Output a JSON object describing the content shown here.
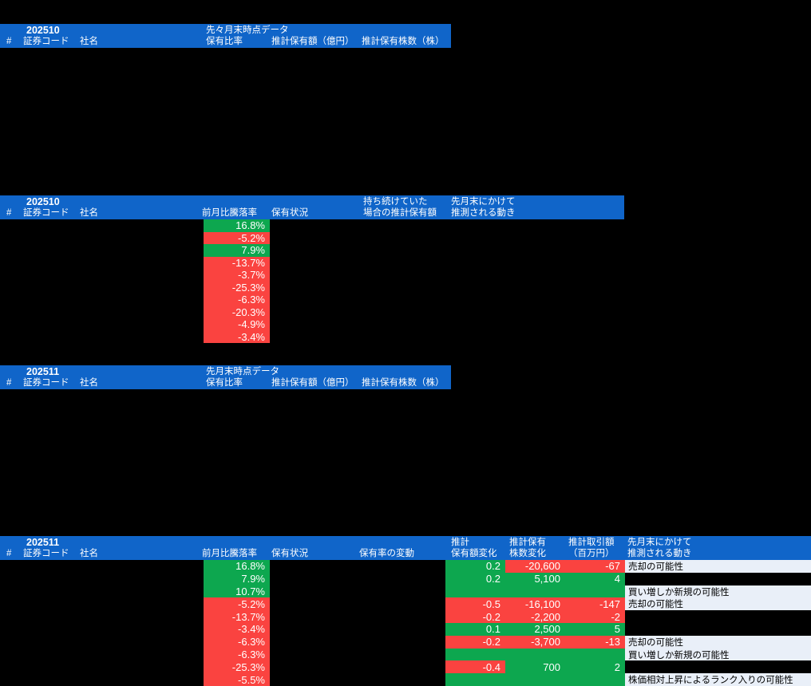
{
  "colors": {
    "header_blue": "#1065c9",
    "positive_green": "#0da74f",
    "negative_red": "#fa4340",
    "note_light": "#e9eff8"
  },
  "s1": {
    "month": "202510",
    "group": "先々月末時点データ",
    "cols": {
      "hash": "#",
      "code": "証券コード",
      "name": "社名",
      "ratio": "保有比率",
      "amount": "推計保有額（億円）",
      "shares": "推計保有株数（株）"
    }
  },
  "s2": {
    "month": "202510",
    "cols": {
      "hash": "#",
      "code": "証券コード",
      "name": "社名",
      "pct": "前月比騰落率",
      "status": "保有状況",
      "hold1": "持ち続けていた",
      "hold2": "場合の推計保有額",
      "move1": "先月末にかけて",
      "move2": "推測される動き"
    },
    "rows": [
      {
        "pct": "16.8%",
        "pct_bg": "green"
      },
      {
        "pct": "-5.2%",
        "pct_bg": "red"
      },
      {
        "pct": "7.9%",
        "pct_bg": "green"
      },
      {
        "pct": "-13.7%",
        "pct_bg": "red"
      },
      {
        "pct": "-3.7%",
        "pct_bg": "red"
      },
      {
        "pct": "-25.3%",
        "pct_bg": "red"
      },
      {
        "pct": "-6.3%",
        "pct_bg": "red"
      },
      {
        "pct": "-20.3%",
        "pct_bg": "red"
      },
      {
        "pct": "-4.9%",
        "pct_bg": "red"
      },
      {
        "pct": "-3.4%",
        "pct_bg": "red"
      }
    ]
  },
  "s3": {
    "month": "202511",
    "group": "先月末時点データ",
    "cols": {
      "hash": "#",
      "code": "証券コード",
      "name": "社名",
      "ratio": "保有比率",
      "amount": "推計保有額（億円）",
      "shares": "推計保有株数（株）"
    }
  },
  "s4": {
    "month": "202511",
    "cols": {
      "hash": "#",
      "code": "証券コード",
      "name": "社名",
      "pct": "前月比騰落率",
      "status": "保有状況",
      "ratio_change": "保有率の変動",
      "chg1": "推計",
      "chg2": "保有額変化",
      "sh1": "推計保有",
      "sh2": "株数変化",
      "tr1": "推計取引額",
      "tr2": "（百万円）",
      "move1": "先月末にかけて",
      "move2": "推測される動き"
    },
    "rows": [
      {
        "pct": "16.8%",
        "pct_bg": "green",
        "chg": "0.2",
        "chg_bg": "green",
        "shares": "-20,600",
        "shares_bg": "red",
        "trade": "-67",
        "trade_bg": "red",
        "move": "売却の可能性"
      },
      {
        "pct": "7.9%",
        "pct_bg": "green",
        "chg": "0.2",
        "chg_bg": "green",
        "shares": "5,100",
        "shares_bg": "green",
        "trade": "4",
        "trade_bg": "green",
        "move": ""
      },
      {
        "pct": "10.7%",
        "pct_bg": "green",
        "chg": "",
        "chg_bg": "green",
        "shares": "",
        "shares_bg": "green",
        "trade": "",
        "trade_bg": "green",
        "move": "買い増しか新規の可能性"
      },
      {
        "pct": "-5.2%",
        "pct_bg": "red",
        "chg": "-0.5",
        "chg_bg": "red",
        "shares": "-16,100",
        "shares_bg": "red",
        "trade": "-147",
        "trade_bg": "red",
        "move": "売却の可能性"
      },
      {
        "pct": "-13.7%",
        "pct_bg": "red",
        "chg": "-0.2",
        "chg_bg": "red",
        "shares": "-2,200",
        "shares_bg": "red",
        "trade": "-2",
        "trade_bg": "red",
        "move": ""
      },
      {
        "pct": "-3.4%",
        "pct_bg": "red",
        "chg": "0.1",
        "chg_bg": "green",
        "shares": "2,500",
        "shares_bg": "green",
        "trade": "5",
        "trade_bg": "green",
        "move": ""
      },
      {
        "pct": "-6.3%",
        "pct_bg": "red",
        "chg": "-0.2",
        "chg_bg": "red",
        "shares": "-3,700",
        "shares_bg": "red",
        "trade": "-13",
        "trade_bg": "red",
        "move": "売却の可能性"
      },
      {
        "pct": "-6.3%",
        "pct_bg": "red",
        "chg": "",
        "chg_bg": "green",
        "shares": "",
        "shares_bg": "green",
        "trade": "",
        "trade_bg": "green",
        "move": "買い増しか新規の可能性"
      },
      {
        "pct": "-25.3%",
        "pct_bg": "red",
        "chg": "-0.4",
        "chg_bg": "red",
        "shares": "700",
        "shares_bg": "green",
        "trade": "2",
        "trade_bg": "green",
        "move": ""
      },
      {
        "pct": "-5.5%",
        "pct_bg": "red",
        "chg": "",
        "chg_bg": "green",
        "shares": "",
        "shares_bg": "green",
        "trade": "",
        "trade_bg": "green",
        "move": "株価相対上昇によるランク入りの可能性"
      }
    ]
  }
}
